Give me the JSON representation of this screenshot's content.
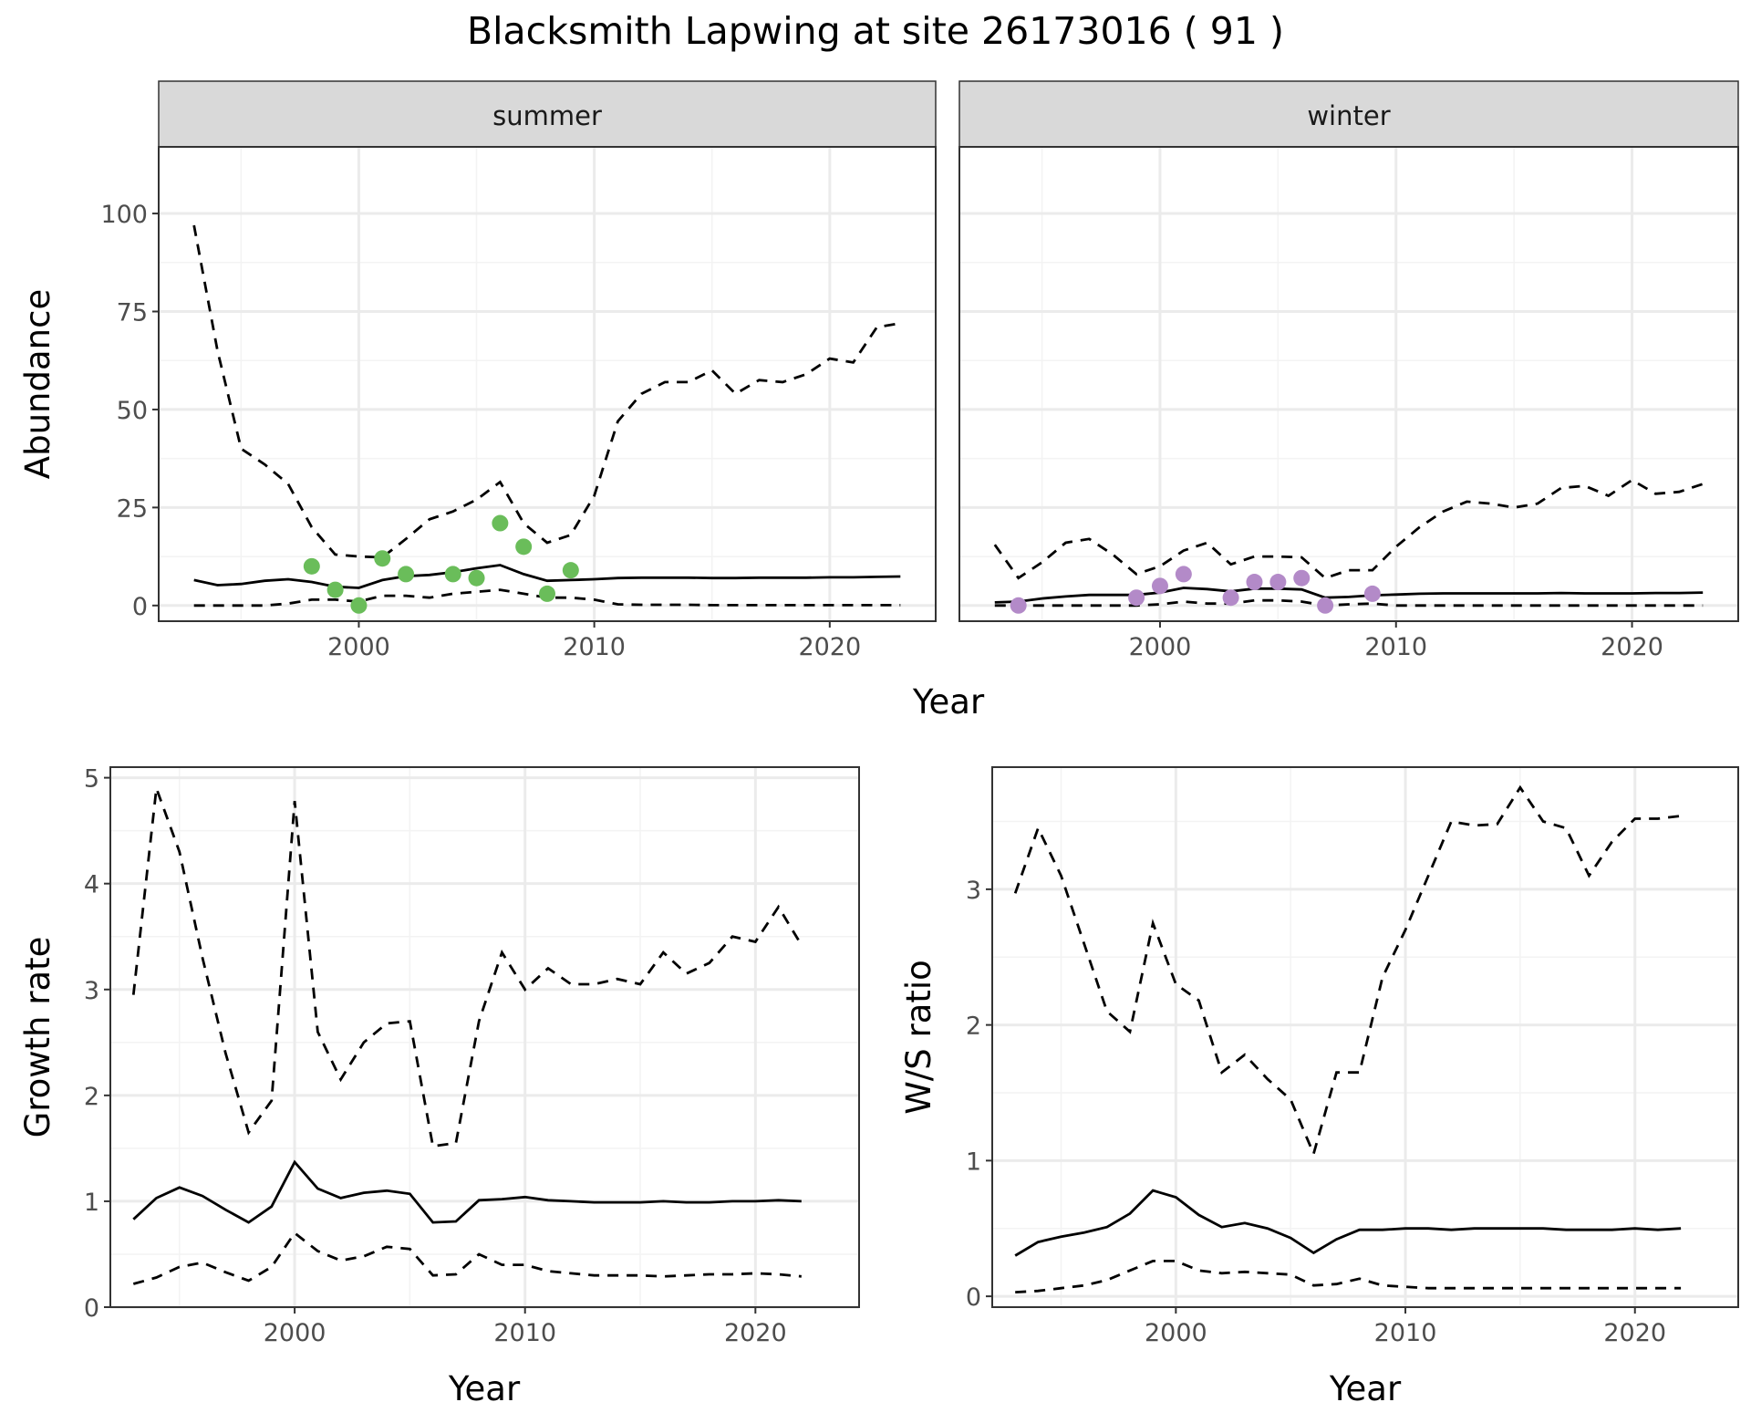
{
  "title": "Blacksmith Lapwing at site 26173016 ( 91 )",
  "colors": {
    "summer_points": "#6abd5a",
    "winter_points": "#b38ac8",
    "line": "#000000",
    "strip_bg": "#d9d9d9",
    "grid": "#ebebeb"
  },
  "chart_data": [
    {
      "type": "line",
      "facet": "summer",
      "xlabel": "Year",
      "ylabel": "Abundance",
      "xlim": [
        1991.5,
        2024.5
      ],
      "ylim": [
        -4,
        117
      ],
      "xticks": [
        2000,
        2010,
        2020
      ],
      "yticks": [
        0,
        25,
        50,
        75,
        100
      ],
      "x": [
        1993,
        1994,
        1995,
        1996,
        1997,
        1998,
        1999,
        2000,
        2001,
        2002,
        2003,
        2004,
        2005,
        2006,
        2007,
        2008,
        2009,
        2010,
        2011,
        2012,
        2013,
        2014,
        2015,
        2016,
        2017,
        2018,
        2019,
        2020,
        2021,
        2022,
        2023
      ],
      "series": [
        {
          "name": "estimate",
          "style": "solid",
          "values": [
            6.5,
            5.2,
            5.5,
            6.3,
            6.7,
            6,
            4.8,
            4.5,
            6.5,
            7.5,
            7.8,
            8.5,
            9.5,
            10.3,
            8,
            6.3,
            6.5,
            6.7,
            7,
            7.1,
            7.1,
            7.1,
            7,
            7,
            7.1,
            7.1,
            7.1,
            7.2,
            7.2,
            7.3,
            7.4
          ]
        },
        {
          "name": "upper",
          "style": "dashed",
          "values": [
            97,
            65,
            40,
            36,
            31,
            20,
            13,
            12.5,
            12.3,
            17,
            22,
            24,
            27,
            31.5,
            21,
            16,
            18,
            28,
            47,
            54,
            57,
            57,
            60,
            54,
            57.5,
            57,
            59,
            63,
            62,
            71,
            72
          ]
        },
        {
          "name": "lower",
          "style": "dashed",
          "values": [
            0,
            0,
            0,
            0,
            0.5,
            1.5,
            1.5,
            1,
            2.5,
            2.5,
            2,
            3,
            3.5,
            4,
            3,
            2,
            2,
            1.5,
            0.3,
            0.2,
            0.2,
            0.2,
            0.1,
            0.1,
            0.1,
            0.1,
            0.1,
            0.1,
            0.1,
            0.1,
            0.1
          ]
        }
      ],
      "points": {
        "x": [
          1998,
          1999,
          2000,
          2001,
          2002,
          2004,
          2005,
          2006,
          2007,
          2008,
          2009
        ],
        "y": [
          10,
          4,
          0,
          12,
          8,
          8,
          7,
          21,
          15,
          3,
          9
        ]
      }
    },
    {
      "type": "line",
      "facet": "winter",
      "xlabel": "Year",
      "ylabel": "Abundance",
      "xlim": [
        1991.5,
        2024.5
      ],
      "ylim": [
        -4,
        117
      ],
      "xticks": [
        2000,
        2010,
        2020
      ],
      "yticks": [
        0,
        25,
        50,
        75,
        100
      ],
      "x": [
        1993,
        1994,
        1995,
        1996,
        1997,
        1998,
        1999,
        2000,
        2001,
        2002,
        2003,
        2004,
        2005,
        2006,
        2007,
        2008,
        2009,
        2010,
        2011,
        2012,
        2013,
        2014,
        2015,
        2016,
        2017,
        2018,
        2019,
        2020,
        2021,
        2022,
        2023
      ],
      "series": [
        {
          "name": "estimate",
          "style": "solid",
          "values": [
            0.8,
            1,
            1.8,
            2.3,
            2.7,
            2.7,
            2.7,
            3.3,
            4.5,
            4.2,
            3.6,
            4.3,
            4.3,
            4.1,
            2,
            2.2,
            2.6,
            2.8,
            3,
            3.1,
            3.1,
            3.1,
            3.1,
            3.1,
            3.2,
            3.1,
            3.1,
            3.1,
            3.2,
            3.2,
            3.3
          ]
        },
        {
          "name": "upper",
          "style": "dashed",
          "values": [
            15.5,
            7,
            11,
            16,
            17,
            13,
            8,
            10,
            14,
            16,
            10.5,
            12.5,
            12.5,
            12.3,
            7,
            9,
            9,
            15,
            20,
            24,
            26.5,
            26,
            25,
            26,
            30,
            30.5,
            28,
            32,
            28.5,
            29,
            31
          ]
        },
        {
          "name": "lower",
          "style": "dashed",
          "values": [
            0,
            0,
            0,
            0,
            0,
            0,
            0,
            0.3,
            1,
            0.5,
            0.5,
            1.3,
            1.3,
            1,
            0,
            0.3,
            0.5,
            0,
            0,
            0,
            0,
            0,
            0,
            0,
            0,
            0,
            0,
            0,
            0,
            0,
            0
          ]
        }
      ],
      "points": {
        "x": [
          1994,
          1999,
          2000,
          2001,
          2003,
          2004,
          2005,
          2006,
          2007,
          2009
        ],
        "y": [
          0,
          2,
          5,
          8,
          2,
          6,
          6,
          7,
          0,
          3
        ]
      }
    },
    {
      "type": "line",
      "facet": "growth",
      "xlabel": "Year",
      "ylabel": "Growth rate",
      "xlim": [
        1992,
        2024.5
      ],
      "ylim": [
        0,
        5.1
      ],
      "xticks": [
        2000,
        2010,
        2020
      ],
      "yticks": [
        0,
        1,
        2,
        3,
        4,
        5
      ],
      "x": [
        1993,
        1994,
        1995,
        1996,
        1997,
        1998,
        1999,
        2000,
        2001,
        2002,
        2003,
        2004,
        2005,
        2006,
        2007,
        2008,
        2009,
        2010,
        2011,
        2012,
        2013,
        2014,
        2015,
        2016,
        2017,
        2018,
        2019,
        2020,
        2021,
        2022
      ],
      "series": [
        {
          "name": "estimate",
          "style": "solid",
          "values": [
            0.83,
            1.03,
            1.13,
            1.05,
            0.92,
            0.8,
            0.95,
            1.37,
            1.12,
            1.03,
            1.08,
            1.1,
            1.07,
            0.8,
            0.81,
            1.01,
            1.02,
            1.04,
            1.01,
            1.0,
            0.99,
            0.99,
            0.99,
            1.0,
            0.99,
            0.99,
            1.0,
            1.0,
            1.01,
            1.0
          ]
        },
        {
          "name": "upper",
          "style": "dashed",
          "values": [
            2.95,
            4.9,
            4.3,
            3.3,
            2.4,
            1.65,
            1.95,
            4.78,
            2.6,
            2.15,
            2.5,
            2.68,
            2.7,
            1.52,
            1.55,
            2.7,
            3.35,
            3.0,
            3.2,
            3.05,
            3.05,
            3.1,
            3.05,
            3.35,
            3.15,
            3.25,
            3.5,
            3.45,
            3.78,
            3.42
          ]
        },
        {
          "name": "lower",
          "style": "dashed",
          "values": [
            0.22,
            0.28,
            0.38,
            0.42,
            0.33,
            0.25,
            0.38,
            0.7,
            0.53,
            0.44,
            0.48,
            0.57,
            0.55,
            0.3,
            0.31,
            0.5,
            0.4,
            0.4,
            0.34,
            0.32,
            0.3,
            0.3,
            0.3,
            0.29,
            0.3,
            0.31,
            0.31,
            0.32,
            0.31,
            0.29
          ]
        }
      ]
    },
    {
      "type": "line",
      "facet": "ratio",
      "xlabel": "Year",
      "ylabel": "W/S ratio",
      "xlim": [
        1992,
        2024.5
      ],
      "ylim": [
        -0.08,
        3.9
      ],
      "xticks": [
        2000,
        2010,
        2020
      ],
      "yticks": [
        0,
        1,
        2,
        3
      ],
      "x": [
        1993,
        1994,
        1995,
        1996,
        1997,
        1998,
        1999,
        2000,
        2001,
        2002,
        2003,
        2004,
        2005,
        2006,
        2007,
        2008,
        2009,
        2010,
        2011,
        2012,
        2013,
        2014,
        2015,
        2016,
        2017,
        2018,
        2019,
        2020,
        2021,
        2022
      ],
      "series": [
        {
          "name": "estimate",
          "style": "solid",
          "values": [
            0.3,
            0.4,
            0.44,
            0.47,
            0.51,
            0.61,
            0.78,
            0.73,
            0.6,
            0.51,
            0.54,
            0.5,
            0.43,
            0.32,
            0.42,
            0.49,
            0.49,
            0.5,
            0.5,
            0.49,
            0.5,
            0.5,
            0.5,
            0.5,
            0.49,
            0.49,
            0.49,
            0.5,
            0.49,
            0.5
          ]
        },
        {
          "name": "upper",
          "style": "dashed",
          "values": [
            2.97,
            3.45,
            3.1,
            2.6,
            2.1,
            1.95,
            2.75,
            2.3,
            2.18,
            1.65,
            1.78,
            1.6,
            1.45,
            1.05,
            1.65,
            1.65,
            2.35,
            2.7,
            3.1,
            3.5,
            3.47,
            3.48,
            3.75,
            3.5,
            3.45,
            3.1,
            3.35,
            3.52,
            3.52,
            3.54
          ]
        },
        {
          "name": "lower",
          "style": "dashed",
          "values": [
            0.03,
            0.04,
            0.06,
            0.08,
            0.12,
            0.19,
            0.26,
            0.26,
            0.19,
            0.17,
            0.18,
            0.17,
            0.16,
            0.08,
            0.09,
            0.13,
            0.08,
            0.07,
            0.06,
            0.06,
            0.06,
            0.06,
            0.06,
            0.06,
            0.06,
            0.06,
            0.06,
            0.06,
            0.06,
            0.06
          ]
        }
      ]
    }
  ]
}
